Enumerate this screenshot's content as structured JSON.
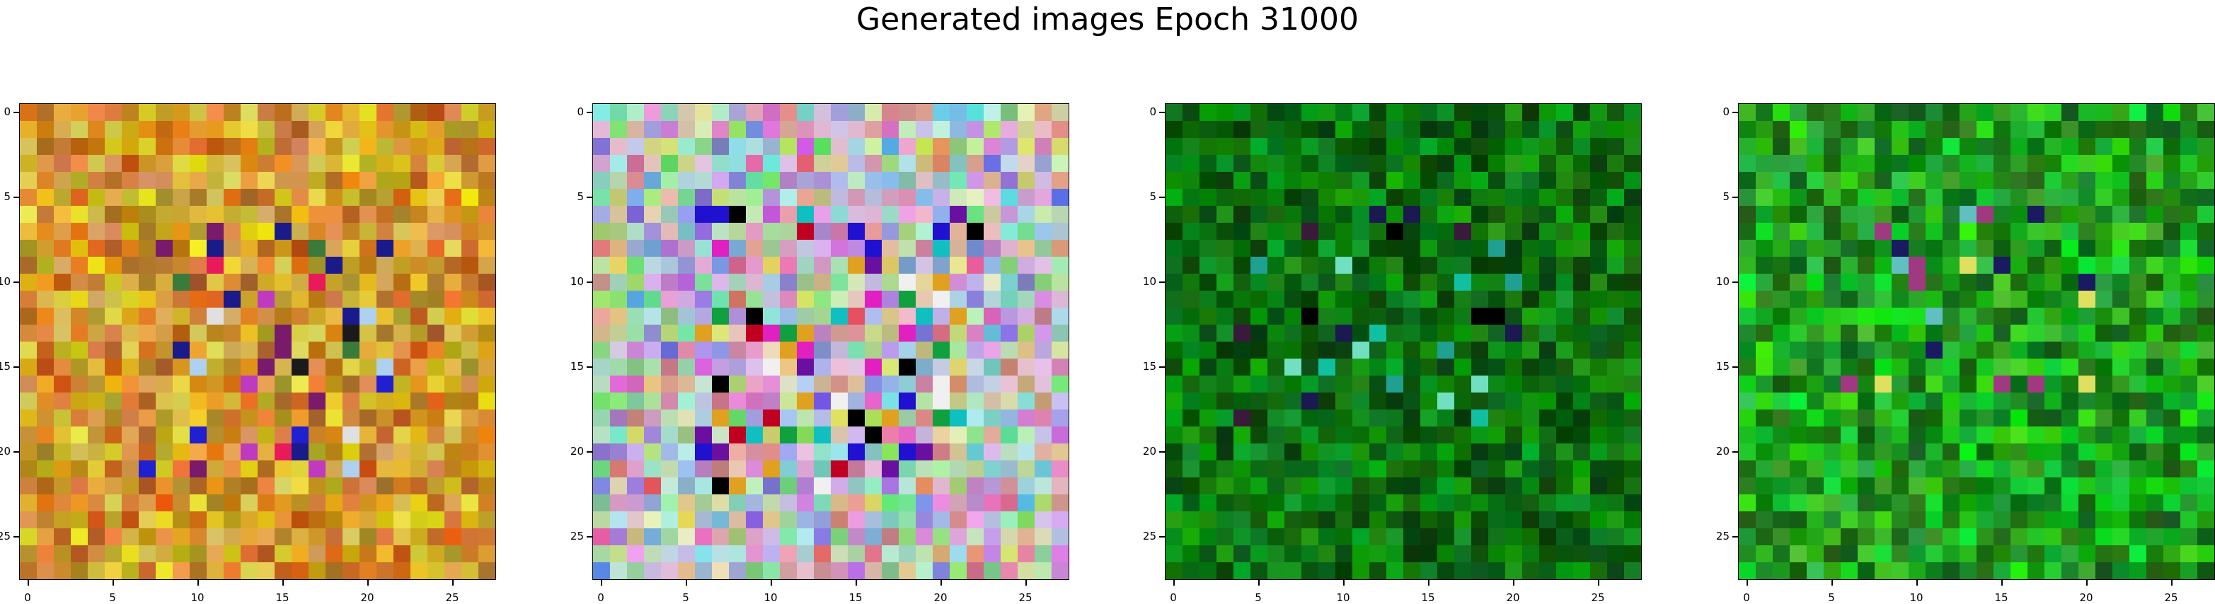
{
  "title": "Generated images Epoch 31000",
  "grid_size": 28,
  "x_ticks": [
    0,
    5,
    10,
    15,
    20,
    25
  ],
  "y_ticks": [
    0,
    5,
    10,
    15,
    20,
    25
  ],
  "panels": [
    {
      "name": "generated-image-1",
      "palette": "warm-orange-yellow"
    },
    {
      "name": "generated-image-2",
      "palette": "pastel-multicolor"
    },
    {
      "name": "generated-image-3",
      "palette": "dark-green"
    },
    {
      "name": "generated-image-4",
      "palette": "bright-green"
    }
  ]
}
